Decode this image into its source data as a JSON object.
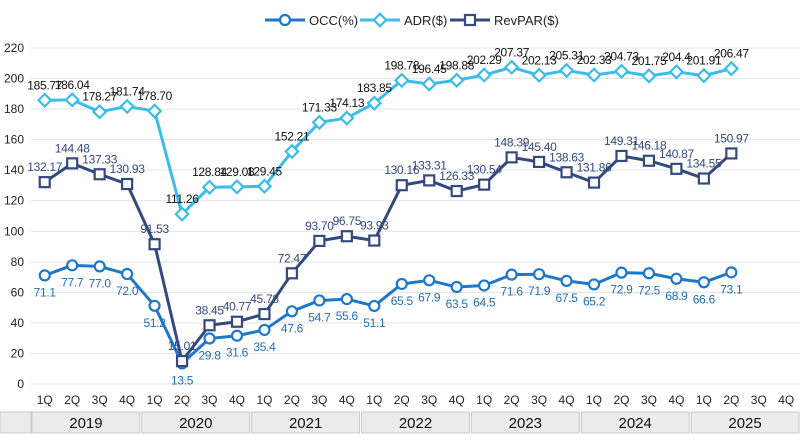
{
  "chart_data": {
    "type": "line",
    "ylim": [
      0,
      220
    ],
    "yticks": [
      0,
      20,
      40,
      60,
      80,
      100,
      120,
      140,
      160,
      180,
      200,
      220
    ],
    "grid": true,
    "legend_position": "top-center",
    "quarters": [
      "1Q",
      "2Q",
      "3Q",
      "4Q",
      "1Q",
      "2Q",
      "3Q",
      "4Q",
      "1Q",
      "2Q",
      "3Q",
      "4Q",
      "1Q",
      "2Q",
      "3Q",
      "4Q",
      "1Q",
      "2Q",
      "3Q",
      "4Q",
      "1Q",
      "2Q",
      "3Q",
      "4Q",
      "1Q",
      "2Q",
      "3Q",
      "4Q"
    ],
    "years": [
      "2019",
      "2020",
      "2021",
      "2022",
      "2023",
      "2024",
      "2025"
    ],
    "series": [
      {
        "name": "OCC(%)",
        "color": "#1f77c8",
        "marker": "circle",
        "values": [
          71.1,
          77.7,
          77.0,
          72.0,
          51.2,
          13.5,
          29.8,
          31.6,
          35.4,
          47.6,
          54.7,
          55.6,
          51.1,
          65.5,
          67.9,
          63.5,
          64.5,
          71.6,
          71.9,
          67.5,
          65.2,
          72.9,
          72.5,
          68.9,
          66.6,
          73.1,
          null,
          null
        ],
        "labels": [
          "71.1",
          "77.7",
          "77.0",
          "72.0",
          "51.2",
          "13.5",
          "29.8",
          "31.6",
          "35.4",
          "47.6",
          "54.7",
          "55.6",
          "51.1",
          "65.5",
          "67.9",
          "63.5",
          "64.5",
          "71.6",
          "71.9",
          "67.5",
          "65.2",
          "72.9",
          "72.5",
          "68.9",
          "66.6",
          "73.1",
          "",
          ""
        ]
      },
      {
        "name": "ADR($)",
        "color": "#3cbce8",
        "marker": "diamond",
        "values": [
          185.77,
          186.04,
          178.27,
          181.74,
          178.7,
          111.26,
          128.84,
          129.08,
          129.45,
          152.21,
          171.33,
          174.13,
          183.85,
          198.78,
          196.45,
          198.88,
          202.29,
          207.37,
          202.13,
          205.31,
          202.33,
          204.73,
          201.75,
          204.4,
          201.91,
          206.47,
          null,
          null
        ],
        "labels": [
          "185.77",
          "186.04",
          "178.27",
          "181.74",
          "178.70",
          "111.26",
          "128.84",
          "129.08",
          "129.45",
          "152.21",
          "171.33",
          "174.13",
          "183.85",
          "198.78",
          "196.45",
          "198.88",
          "202.29",
          "207.37",
          "202.13",
          "205.31",
          "202.33",
          "204.73",
          "201.75",
          "204.4",
          "201.91",
          "206.47",
          "",
          ""
        ]
      },
      {
        "name": "RevPAR($)",
        "color": "#34497e",
        "marker": "square",
        "values": [
          132.17,
          144.48,
          137.33,
          130.93,
          91.53,
          15.01,
          38.45,
          40.77,
          45.78,
          72.47,
          93.7,
          96.75,
          93.93,
          130.16,
          133.31,
          126.33,
          130.54,
          148.39,
          145.4,
          138.63,
          131.86,
          149.31,
          146.18,
          140.87,
          134.55,
          150.97,
          null,
          null
        ],
        "labels": [
          "132.17",
          "144.48",
          "137.33",
          "130.93",
          "91.53",
          "15.01",
          "38.45",
          "40.77",
          "45.78",
          "72.47",
          "93.70",
          "96.75",
          "93.93",
          "130.16",
          "133.31",
          "126.33",
          "130.54",
          "148.39",
          "145.40",
          "138.63",
          "131.86",
          "149.31",
          "146.18",
          "140.87",
          "134.55",
          "150.97",
          "",
          ""
        ]
      }
    ]
  }
}
